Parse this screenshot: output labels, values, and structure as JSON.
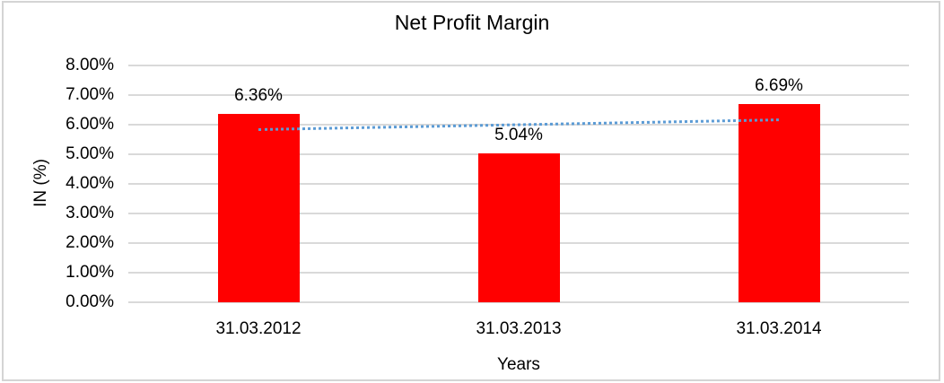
{
  "frame": {
    "border_color": "#d4d4d4",
    "background": "#ffffff"
  },
  "chart_data": {
    "type": "bar",
    "title": "Net Profit Margin",
    "xlabel": "Years",
    "ylabel": "IN (%)",
    "categories": [
      "31.03.2012",
      "31.03.2013",
      "31.03.2014"
    ],
    "values": [
      6.36,
      5.04,
      6.69
    ],
    "data_labels": [
      "6.36%",
      "5.04%",
      "6.69%"
    ],
    "ylim": [
      0,
      8
    ],
    "ytick_labels": [
      "0.00%",
      "1.00%",
      "2.00%",
      "3.00%",
      "4.00%",
      "5.00%",
      "6.00%",
      "7.00%",
      "8.00%"
    ],
    "grid": true,
    "legend": "none",
    "bar_color": "#ff0000",
    "gridline_color": "#d9d9d9",
    "text_color": "#000000",
    "trendline": {
      "type": "linear",
      "style": "dotted",
      "color": "#5b9bd5",
      "start_value": 5.87,
      "end_value": 6.2
    }
  }
}
